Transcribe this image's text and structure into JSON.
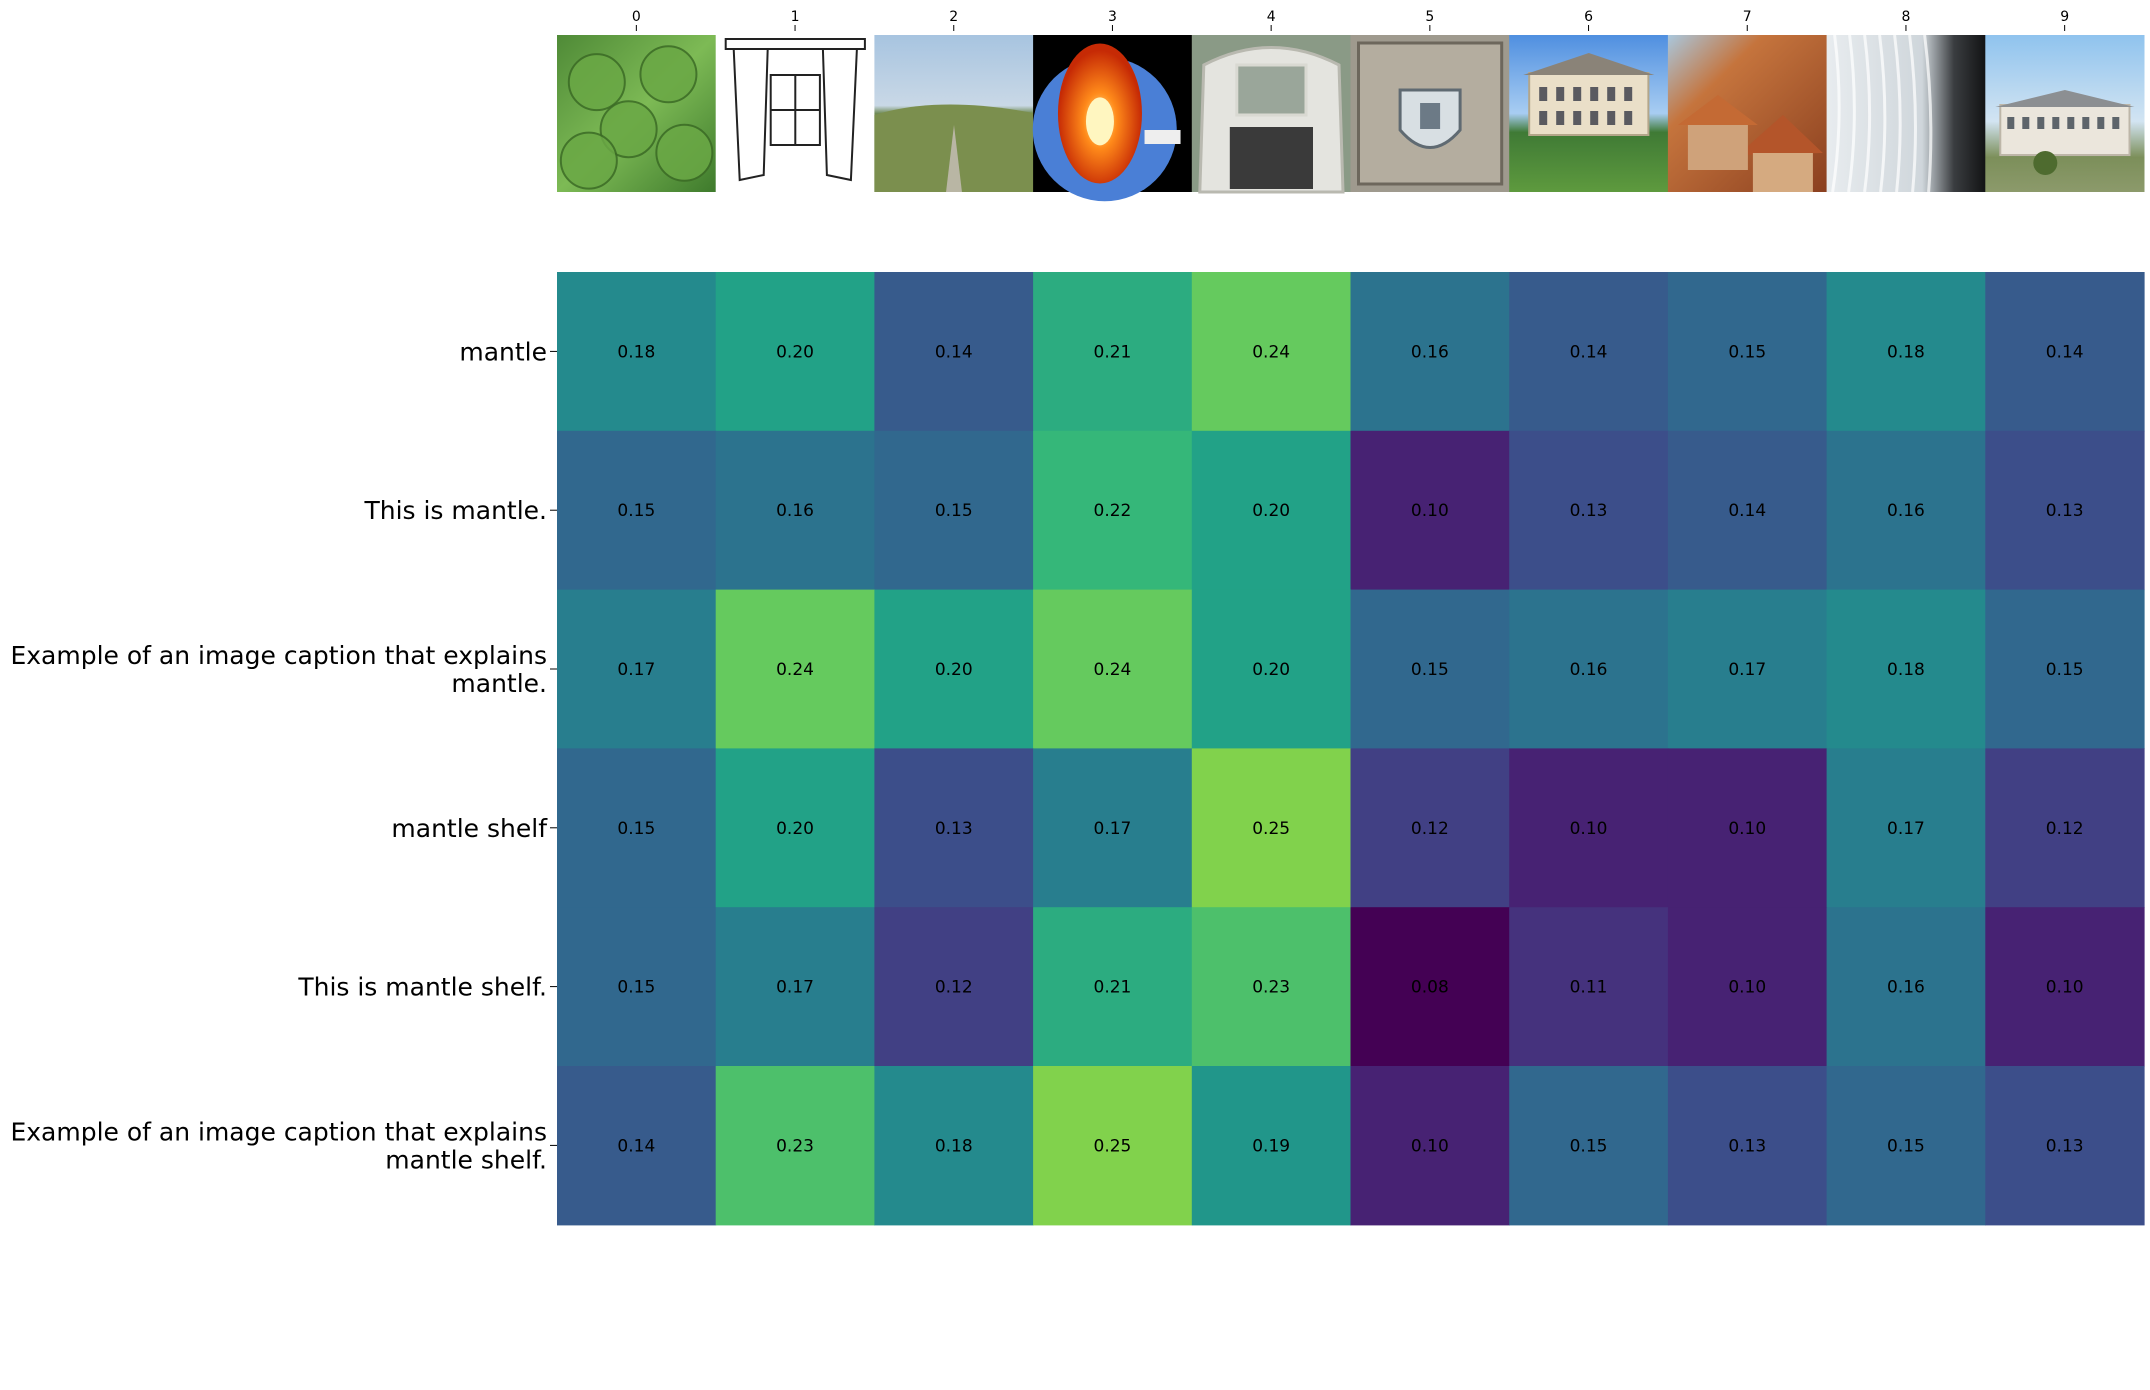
{
  "chart_data": {
    "type": "heatmap",
    "title": "",
    "xlabel": "",
    "ylabel": "",
    "columns": [
      "0",
      "1",
      "2",
      "3",
      "4",
      "5",
      "6",
      "7",
      "8",
      "9"
    ],
    "rows": [
      [
        "mantle"
      ],
      [
        "This is mantle."
      ],
      [
        "Example of an image caption that explains",
        "mantle."
      ],
      [
        "mantle shelf"
      ],
      [
        "This is mantle shelf."
      ],
      [
        "Example of an image caption that explains",
        "mantle shelf."
      ]
    ],
    "values": [
      [
        0.18,
        0.2,
        0.14,
        0.21,
        0.24,
        0.16,
        0.14,
        0.15,
        0.18,
        0.14
      ],
      [
        0.15,
        0.16,
        0.15,
        0.22,
        0.2,
        0.1,
        0.13,
        0.14,
        0.16,
        0.13
      ],
      [
        0.17,
        0.24,
        0.2,
        0.24,
        0.2,
        0.15,
        0.16,
        0.17,
        0.18,
        0.15
      ],
      [
        0.15,
        0.2,
        0.13,
        0.17,
        0.25,
        0.12,
        0.1,
        0.1,
        0.17,
        0.12
      ],
      [
        0.15,
        0.17,
        0.12,
        0.21,
        0.23,
        0.08,
        0.11,
        0.1,
        0.16,
        0.1
      ],
      [
        0.14,
        0.23,
        0.18,
        0.25,
        0.19,
        0.1,
        0.15,
        0.13,
        0.15,
        0.13
      ]
    ],
    "value_format": "2 decimals",
    "colormap": "viridis",
    "color_range": [
      0.08,
      0.29
    ],
    "grid": false,
    "legend": "none",
    "column_images": [
      "green leaves",
      "curtain line drawing",
      "valley landscape",
      "earth layers diagram",
      "ornate fireplace mantle",
      "stone coat of arms",
      "mansion",
      "rooftops",
      "lace curtain",
      "manor house"
    ]
  }
}
